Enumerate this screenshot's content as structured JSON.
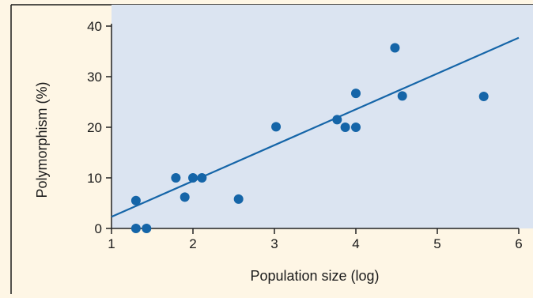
{
  "chart_data": {
    "type": "scatter",
    "title": "",
    "xlabel": "Population size (log)",
    "ylabel": "Polymorphism (%)",
    "xlim": [
      1,
      6
    ],
    "ylim": [
      0,
      40
    ],
    "xticks": [
      "1",
      "2",
      "3",
      "4",
      "5",
      "6"
    ],
    "yticks": [
      "0",
      "10",
      "20",
      "30",
      "40"
    ],
    "grid": false,
    "legend": "none",
    "colors": {
      "background": "#fef6e5",
      "plot_area": "#dbe4f1",
      "marker": "#1565a8",
      "trend_line": "#1565a8",
      "axes": "#222222"
    },
    "series": [
      {
        "points": [
          {
            "x": 1.3,
            "y": 5.5
          },
          {
            "x": 1.3,
            "y": 0
          },
          {
            "x": 1.43,
            "y": 0
          },
          {
            "x": 1.79,
            "y": 10
          },
          {
            "x": 1.9,
            "y": 6.2
          },
          {
            "x": 2.0,
            "y": 10
          },
          {
            "x": 2.11,
            "y": 10
          },
          {
            "x": 2.56,
            "y": 5.8
          },
          {
            "x": 3.02,
            "y": 20.1
          },
          {
            "x": 3.77,
            "y": 21.5
          },
          {
            "x": 3.87,
            "y": 20
          },
          {
            "x": 4.0,
            "y": 20
          },
          {
            "x": 4.0,
            "y": 26.7
          },
          {
            "x": 4.48,
            "y": 35.7
          },
          {
            "x": 4.57,
            "y": 26.2
          },
          {
            "x": 5.57,
            "y": 26.1
          }
        ]
      }
    ],
    "trend_line": {
      "x": [
        1,
        6
      ],
      "y": [
        2.3,
        37.7
      ]
    }
  }
}
